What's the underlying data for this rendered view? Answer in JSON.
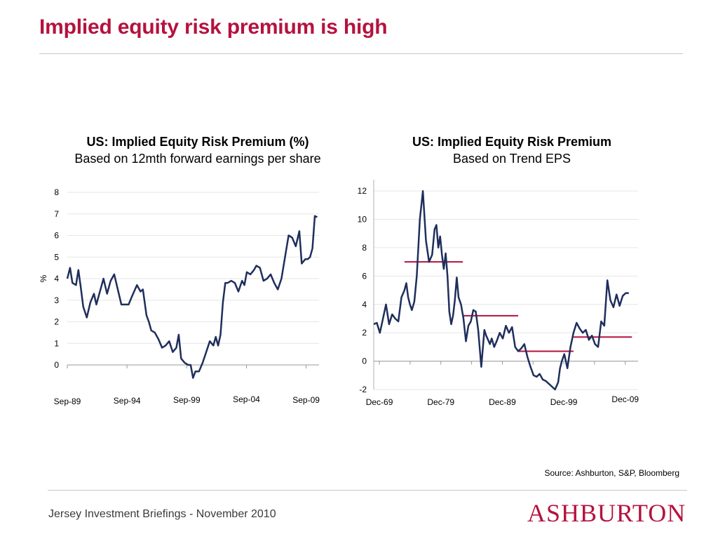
{
  "slide": {
    "title": "Implied equity risk premium is high",
    "source": "Source: Ashburton, S&P, Bloomberg",
    "footer": "Jersey Investment Briefings - November 2010",
    "logo": "ASHBURTON"
  },
  "colors": {
    "title": "#b5123e",
    "line": "#1f2f5c",
    "segment": "#b5123e",
    "grid": "#e6e6e6"
  },
  "chart_data": [
    {
      "type": "line",
      "title": "US: Implied Equity Risk Premium (%)",
      "subtitle": "Based on 12mth forward earnings per share",
      "ylabel": "%",
      "ylim": [
        0,
        8
      ],
      "yticks": [
        0,
        1,
        2,
        3,
        4,
        5,
        6,
        7,
        8
      ],
      "grid": true,
      "xlim": [
        1989.67,
        2010.75
      ],
      "xticks": [
        {
          "x": 1989.67,
          "label": "Sep-89"
        },
        {
          "x": 1994.67,
          "label": "Sep-94"
        },
        {
          "x": 1999.67,
          "label": "Sep-99"
        },
        {
          "x": 2004.67,
          "label": "Sep-04"
        },
        {
          "x": 2009.67,
          "label": "Sep-09"
        }
      ],
      "series": [
        {
          "x": [
            1989.67,
            1989.9,
            1990.1,
            1990.4,
            1990.6,
            1990.8,
            1991.0,
            1991.3,
            1991.6,
            1991.9,
            1992.1,
            1992.4,
            1992.7,
            1993.0,
            1993.3,
            1993.6,
            1993.9,
            1994.2,
            1994.5,
            1994.8,
            1995.1,
            1995.5,
            1995.8,
            1996.0,
            1996.3,
            1996.5,
            1996.7,
            1997.0,
            1997.3,
            1997.6,
            1997.9,
            1998.2,
            1998.5,
            1998.8,
            1999.0,
            1999.2,
            1999.5,
            1999.8,
            2000.0,
            2000.2,
            2000.4,
            2000.7,
            2001.0,
            2001.3,
            2001.6,
            2001.9,
            2002.1,
            2002.3,
            2002.5,
            2002.7,
            2002.9,
            2003.1,
            2003.4,
            2003.7,
            2004.0,
            2004.3,
            2004.5,
            2004.7,
            2005.0,
            2005.3,
            2005.5,
            2005.8,
            2006.1,
            2006.4,
            2006.7,
            2007.0,
            2007.3,
            2007.6,
            2007.9,
            2008.2,
            2008.5,
            2008.8,
            2009.1,
            2009.3,
            2009.6,
            2009.8,
            2010.0,
            2010.2,
            2010.4,
            2010.6
          ],
          "y": [
            4.0,
            4.5,
            3.8,
            3.7,
            4.4,
            3.6,
            2.7,
            2.2,
            2.9,
            3.3,
            2.8,
            3.4,
            4.0,
            3.3,
            3.9,
            4.2,
            3.5,
            2.8,
            2.8,
            2.8,
            3.2,
            3.7,
            3.4,
            3.5,
            2.3,
            2.0,
            1.6,
            1.5,
            1.2,
            0.8,
            0.9,
            1.1,
            0.6,
            0.8,
            1.4,
            0.3,
            0.1,
            0.0,
            0.0,
            -0.6,
            -0.3,
            -0.3,
            0.1,
            0.6,
            1.1,
            0.9,
            1.3,
            0.9,
            1.4,
            2.9,
            3.8,
            3.8,
            3.9,
            3.8,
            3.4,
            3.9,
            3.7,
            4.3,
            4.2,
            4.4,
            4.6,
            4.5,
            3.9,
            4.0,
            4.2,
            3.8,
            3.5,
            4.0,
            5.0,
            6.0,
            5.9,
            5.5,
            6.2,
            4.7,
            4.9,
            4.9,
            5.0,
            5.4,
            6.9,
            6.85
          ]
        }
      ]
    },
    {
      "type": "line",
      "title": "US: Implied Equity Risk Premium",
      "subtitle": "Based on Trend EPS",
      "ylim": [
        -2,
        12.5
      ],
      "yticks": [
        -2,
        0,
        2,
        4,
        6,
        8,
        10,
        12
      ],
      "grid": true,
      "xlim": [
        1969.0,
        2012.0
      ],
      "xticks": [
        {
          "x": 1969.92,
          "label": "Dec-69"
        },
        {
          "x": 1979.92,
          "label": "Dec-79"
        },
        {
          "x": 1989.92,
          "label": "Dec-89"
        },
        {
          "x": 1999.92,
          "label": "Dec-99"
        },
        {
          "x": 2009.92,
          "label": "Dec-09"
        }
      ],
      "series": [
        {
          "x": [
            1969.0,
            1969.5,
            1970.0,
            1970.5,
            1971.0,
            1971.5,
            1972.0,
            1972.5,
            1973.0,
            1973.5,
            1974.0,
            1974.3,
            1974.6,
            1974.9,
            1975.2,
            1975.6,
            1976.0,
            1976.5,
            1977.0,
            1977.5,
            1978.0,
            1978.5,
            1978.9,
            1979.2,
            1979.5,
            1979.8,
            1980.1,
            1980.4,
            1980.7,
            1981.0,
            1981.3,
            1981.6,
            1981.9,
            1982.2,
            1982.5,
            1982.8,
            1983.2,
            1983.6,
            1984.0,
            1984.4,
            1984.8,
            1985.2,
            1985.6,
            1986.0,
            1986.5,
            1987.0,
            1987.3,
            1987.6,
            1987.9,
            1988.2,
            1988.6,
            1989.0,
            1989.5,
            1990.0,
            1990.5,
            1991.0,
            1991.5,
            1992.0,
            1992.5,
            1993.0,
            1993.5,
            1994.0,
            1994.5,
            1995.0,
            1995.5,
            1996.0,
            1996.5,
            1997.0,
            1997.5,
            1998.0,
            1998.5,
            1999.0,
            1999.3,
            1999.6,
            2000.0,
            2000.5,
            2001.0,
            2001.5,
            2002.0,
            2002.5,
            2003.0,
            2003.5,
            2004.0,
            2004.5,
            2005.0,
            2005.5,
            2006.0,
            2006.5,
            2007.0,
            2007.5,
            2008.0,
            2008.5,
            2009.0,
            2009.5,
            2010.0,
            2010.5
          ],
          "y": [
            2.6,
            2.7,
            2.0,
            3.0,
            4.0,
            2.6,
            3.3,
            3.0,
            2.8,
            4.5,
            5.0,
            5.5,
            4.5,
            4.0,
            3.6,
            4.2,
            6.0,
            10.0,
            12.0,
            8.5,
            7.0,
            7.5,
            9.3,
            9.6,
            8.0,
            8.8,
            7.5,
            6.5,
            7.6,
            6.0,
            3.5,
            2.6,
            3.2,
            4.3,
            5.9,
            4.5,
            4.0,
            3.0,
            1.4,
            2.5,
            2.8,
            3.6,
            3.5,
            2.2,
            -0.4,
            2.2,
            1.8,
            1.5,
            1.2,
            1.6,
            1.0,
            1.4,
            2.0,
            1.6,
            2.5,
            2.0,
            2.4,
            1.0,
            0.7,
            0.9,
            1.2,
            0.3,
            -0.4,
            -1.0,
            -1.1,
            -0.9,
            -1.3,
            -1.4,
            -1.6,
            -1.8,
            -2.0,
            -1.5,
            -0.5,
            0.0,
            0.5,
            -0.5,
            1.0,
            2.0,
            2.7,
            2.3,
            2.0,
            2.2,
            1.5,
            1.8,
            1.2,
            1.0,
            2.8,
            2.5,
            5.7,
            4.3,
            3.8,
            4.7,
            3.9,
            4.6,
            4.8,
            4.8
          ]
        }
      ],
      "segments": [
        {
          "x0": 1974.0,
          "x1": 1983.5,
          "y": 7.0
        },
        {
          "x0": 1983.5,
          "x1": 1992.5,
          "y": 3.2
        },
        {
          "x0": 1992.5,
          "x1": 2001.5,
          "y": 0.7
        },
        {
          "x0": 2001.5,
          "x1": 2011.0,
          "y": 1.7
        }
      ]
    }
  ]
}
